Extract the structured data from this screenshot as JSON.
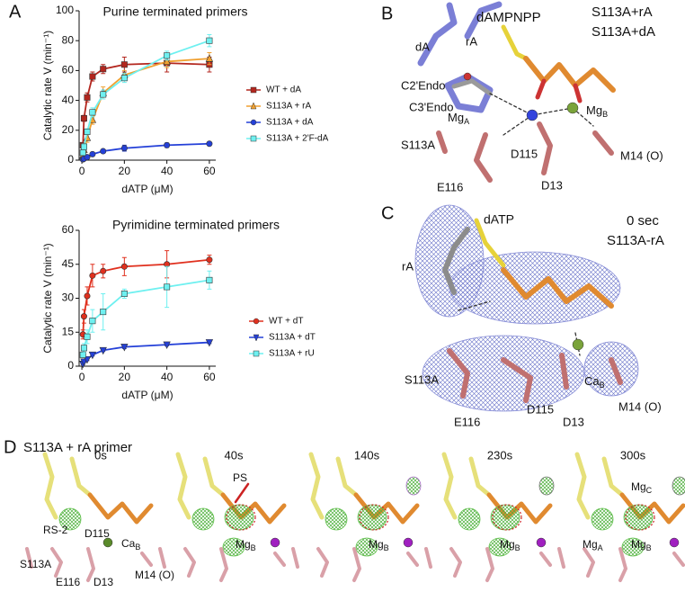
{
  "panel_labels": [
    "A",
    "B",
    "C",
    "D"
  ],
  "chart_data": [
    {
      "type": "line",
      "title": "Purine terminated primers",
      "xlabel": "dATP (μM)",
      "ylabel": "Catalytic rate V (min⁻¹)",
      "x": [
        0.5,
        1,
        2.5,
        5,
        10,
        20,
        40,
        60
      ],
      "xlim": [
        -1.3,
        63
      ],
      "xticks": [
        0,
        20,
        40,
        60
      ],
      "ylim": [
        0,
        100
      ],
      "yticks": [
        0,
        20,
        40,
        60,
        80,
        100
      ],
      "legend": "right",
      "series": [
        {
          "name": "WT + dA",
          "color": "#b3261e",
          "marker": "square",
          "values": [
            10,
            28,
            42,
            56,
            61,
            64,
            65,
            64
          ],
          "errors": [
            1,
            2,
            3,
            3,
            3,
            5,
            6,
            5
          ]
        },
        {
          "name": "S113A + rA",
          "color": "#f0a030",
          "marker": "triangle",
          "values": [
            3,
            7,
            15,
            27,
            45,
            57,
            66,
            68
          ],
          "errors": [
            1,
            2,
            3,
            3,
            4,
            3,
            4,
            4
          ]
        },
        {
          "name": "S113A + dA",
          "color": "#2440d8",
          "marker": "circle",
          "values": [
            0.5,
            1,
            2,
            4,
            6,
            8,
            10,
            11
          ],
          "errors": [
            0.3,
            0.3,
            0.5,
            0.5,
            1,
            2,
            1.5,
            1
          ]
        },
        {
          "name": "S113A + 2'F-dA",
          "color": "#6ef0f0",
          "marker": "square",
          "values": [
            5,
            9,
            19,
            32,
            44,
            55,
            70,
            80
          ],
          "errors": [
            1,
            2,
            2,
            3,
            3,
            3,
            3,
            4
          ]
        }
      ]
    },
    {
      "type": "line",
      "title": "Pyrimidine terminated primers",
      "xlabel": "dATP (μM)",
      "ylabel": "Catalytic rate V (min⁻¹)",
      "x": [
        0.5,
        1,
        2.5,
        5,
        10,
        20,
        40,
        60
      ],
      "xlim": [
        -1.3,
        63
      ],
      "xticks": [
        0,
        20,
        40,
        60
      ],
      "ylim": [
        0,
        60
      ],
      "yticks": [
        0,
        15,
        30,
        45,
        60
      ],
      "legend": "right",
      "series": [
        {
          "name": "WT + dT",
          "color": "#e0301e",
          "marker": "circle",
          "values": [
            14,
            22,
            31,
            40,
            42,
            44,
            45,
            47
          ],
          "errors": [
            2,
            3,
            4,
            5,
            3,
            4,
            6,
            2
          ]
        },
        {
          "name": "S113A + dT",
          "color": "#2440d8",
          "marker": "triangle-down",
          "values": [
            1,
            2,
            3,
            5,
            7,
            8.5,
            9.5,
            10.5
          ],
          "errors": [
            0.3,
            0.3,
            0.5,
            0.5,
            0.5,
            0.7,
            0.5,
            0.5
          ]
        },
        {
          "name": "S113A + rU",
          "color": "#6ef0f0",
          "marker": "square",
          "values": [
            5,
            8,
            13,
            20,
            24,
            32,
            35,
            38
          ],
          "errors": [
            1,
            2,
            3,
            5,
            8,
            2,
            9,
            4
          ]
        }
      ]
    }
  ],
  "panel_b": {
    "labels": [
      "dAMPNPP",
      "S113A+rA",
      "S113A+dA",
      "dA",
      "rA",
      "C2'Endo",
      "C3'Endo",
      {
        "text": "Mg",
        "sub": "A"
      },
      {
        "text": "Mg",
        "sub": "B"
      },
      "S113A",
      "D115",
      "M14 (O)",
      "E116",
      "D13"
    ]
  },
  "panel_c": {
    "labels": [
      "dATP",
      "0 sec",
      "S113A-rA",
      "rA",
      {
        "text": "Ca",
        "sub": "B"
      },
      "S113A",
      "M14 (O)",
      "E116",
      "D115",
      "D13"
    ]
  },
  "panel_d": {
    "title": "S113A + rA primer",
    "frames": [
      {
        "time": "0s",
        "labels": [
          "RS-2",
          "D115",
          {
            "text": "Ca",
            "sub": "B"
          },
          "S113A",
          "E116",
          "D13",
          "M14 (O)"
        ]
      },
      {
        "time": "40s",
        "labels": [
          "PS",
          {
            "text": "Mg",
            "sub": "B"
          }
        ]
      },
      {
        "time": "140s",
        "labels": [
          {
            "text": "Mg",
            "sub": "B"
          }
        ]
      },
      {
        "time": "230s",
        "labels": [
          {
            "text": "Mg",
            "sub": "B"
          }
        ]
      },
      {
        "time": "300s",
        "labels": [
          {
            "text": "Mg",
            "sub": "C"
          },
          {
            "text": "Mg",
            "sub": "A"
          },
          {
            "text": "Mg",
            "sub": "B"
          }
        ]
      }
    ]
  }
}
